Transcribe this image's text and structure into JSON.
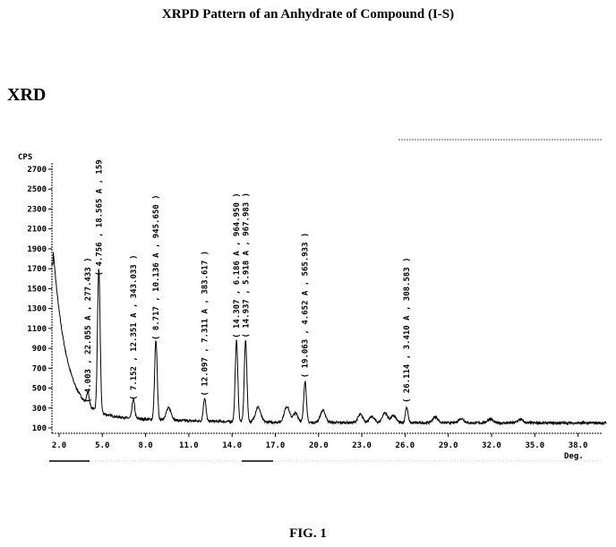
{
  "page_title": "XRPD Pattern of an Anhydrate of Compound (I-S)",
  "section_label": "XRD",
  "figure_caption": "FIG. 1",
  "chart_data": {
    "type": "line",
    "title": "XRPD Pattern of an Anhydrate of Compound (I-S)",
    "xlabel": "Deg.",
    "ylabel": "CPS",
    "xlim": [
      1.5,
      40
    ],
    "ylim": [
      100,
      2700
    ],
    "x_ticks": [
      "2.0",
      "5.0",
      "8.0",
      "11.0",
      "14.0",
      "17.0",
      "20.0",
      "23.0",
      "26.0",
      "29.0",
      "32.0",
      "35.0",
      "38.0"
    ],
    "y_ticks": [
      "100",
      "300",
      "500",
      "700",
      "900",
      "1100",
      "1300",
      "1500",
      "1700",
      "1900",
      "2100",
      "2300",
      "2500",
      "2700"
    ],
    "grid": false,
    "peaks": [
      {
        "two_theta": 4.003,
        "d": 22.055,
        "intensity": 277.433,
        "label": "( 4.003 , 22.055 A , 277.433 )"
      },
      {
        "two_theta": 4.756,
        "d": 18.565,
        "intensity": 1590,
        "label": "( 4.756 , 18.565 A , 159"
      },
      {
        "two_theta": 7.152,
        "d": 12.351,
        "intensity": 343.033,
        "label": "( 7.152 , 12.351 A , 343.033 )"
      },
      {
        "two_theta": 8.717,
        "d": 10.136,
        "intensity": 945.65,
        "label": "( 8.717 , 10.136 A , 945.650 )"
      },
      {
        "two_theta": 12.097,
        "d": 7.311,
        "intensity": 383.617,
        "label": "( 12.097 , 7.311 A , 383.617 )"
      },
      {
        "two_theta": 14.307,
        "d": 6.186,
        "intensity": 964.95,
        "label": "( 14.307 , 6.186 A , 964.950 )"
      },
      {
        "two_theta": 14.937,
        "d": 5.918,
        "intensity": 967.983,
        "label": "( 14.937 , 5.918 A , 967.983 )"
      },
      {
        "two_theta": 19.063,
        "d": 4.652,
        "intensity": 565.933,
        "label": "( 19.063 , 4.652 A , 565.933 )"
      },
      {
        "two_theta": 26.114,
        "d": 3.41,
        "intensity": 308.583,
        "label": "( 26.114 , 3.410 A , 308.583 )"
      }
    ],
    "minor_peaks": [
      {
        "two_theta": 9.6,
        "intensity": 120
      },
      {
        "two_theta": 15.8,
        "intensity": 150
      },
      {
        "two_theta": 17.8,
        "intensity": 160
      },
      {
        "two_theta": 18.4,
        "intensity": 90
      },
      {
        "two_theta": 20.3,
        "intensity": 120
      },
      {
        "two_theta": 22.9,
        "intensity": 80
      },
      {
        "two_theta": 23.7,
        "intensity": 60
      },
      {
        "two_theta": 24.6,
        "intensity": 100
      },
      {
        "two_theta": 25.2,
        "intensity": 70
      },
      {
        "two_theta": 28.1,
        "intensity": 60
      },
      {
        "two_theta": 29.9,
        "intensity": 45
      },
      {
        "two_theta": 31.9,
        "intensity": 40
      },
      {
        "two_theta": 34.0,
        "intensity": 35
      }
    ]
  }
}
